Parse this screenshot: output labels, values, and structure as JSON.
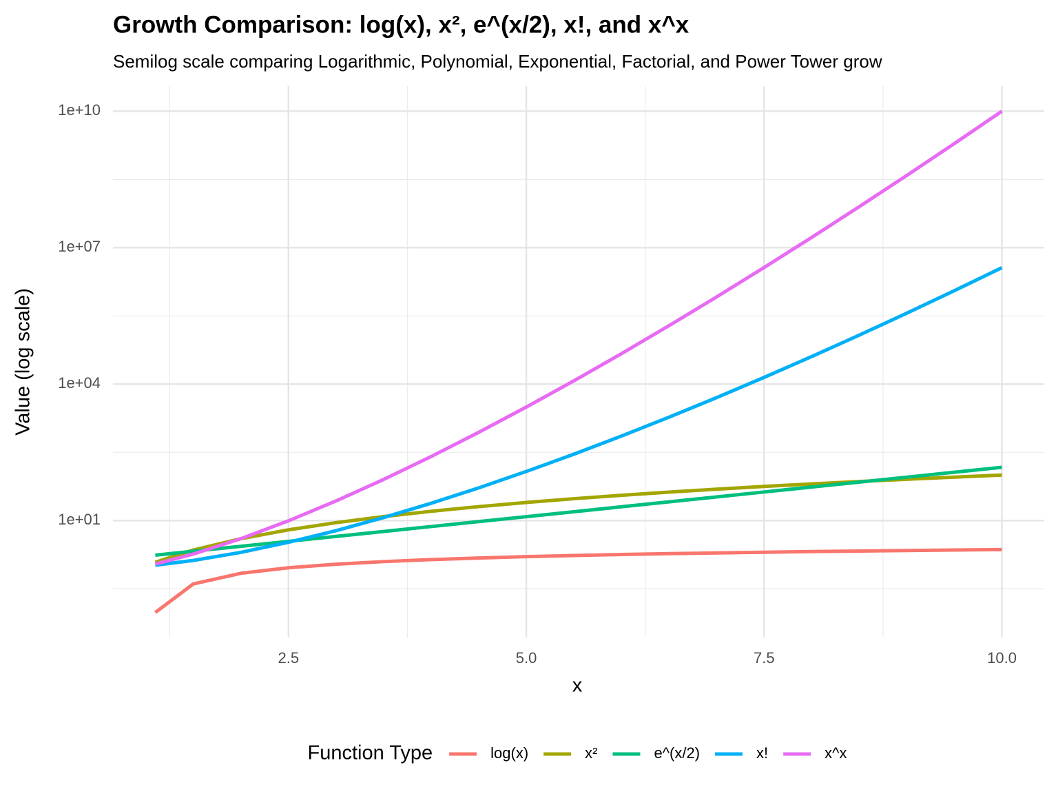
{
  "chart_data": {
    "type": "line",
    "title": "Growth Comparison: log(x), x², e^(x/2), x!, and x^x",
    "subtitle": "Semilog scale comparing Logarithmic, Polynomial, Exponential, Factorial, and Power Tower grow",
    "x_label": "x",
    "y_label": "Value (log scale)",
    "legend_title": "Function Type",
    "legend_position": "bottom",
    "log_y": true,
    "grid": true,
    "xlim": [
      0.655,
      10.445
    ],
    "xticks": [
      {
        "value": 2.5,
        "label": "2.5"
      },
      {
        "value": 5,
        "label": "5.0"
      },
      {
        "value": 7.5,
        "label": "7.5"
      },
      {
        "value": 10,
        "label": "10.0"
      }
    ],
    "ylim": [
      0.0268,
      35560000000
    ],
    "yticks": [
      {
        "value": 10,
        "label": "1e+01"
      },
      {
        "value": 10000,
        "label": "1e+04"
      },
      {
        "value": 10000000,
        "label": "1e+07"
      },
      {
        "value": 10000000000,
        "label": "1e+10"
      }
    ],
    "x": [
      1.1,
      1.5,
      2,
      2.5,
      3,
      3.5,
      4,
      4.5,
      5,
      5.5,
      6,
      6.5,
      7,
      7.5,
      8,
      8.5,
      9,
      9.5,
      10
    ],
    "series": [
      {
        "name": "log(x)",
        "color": "#F8766D",
        "values": [
          0.0953,
          0.4055,
          0.6931,
          0.9163,
          1.0986,
          1.2528,
          1.3863,
          1.5041,
          1.6094,
          1.7047,
          1.7918,
          1.8718,
          1.9459,
          2.0149,
          2.0794,
          2.1401,
          2.1972,
          2.2513,
          2.3026
        ]
      },
      {
        "name": "x²",
        "color": "#A3A500",
        "values": [
          1.21,
          2.25,
          4,
          6.25,
          9,
          12.25,
          16,
          20.25,
          25,
          30.25,
          36,
          42.25,
          49,
          56.25,
          64,
          72.25,
          81,
          90.25,
          100
        ]
      },
      {
        "name": "e^(x/2)",
        "color": "#00BF7D",
        "values": [
          1.7333,
          2.117,
          2.7183,
          3.4903,
          4.4817,
          5.7546,
          7.3891,
          9.4877,
          12.1825,
          15.6426,
          20.0855,
          25.7903,
          33.1155,
          42.5211,
          54.5982,
          70.1054,
          90.0171,
          115.5843,
          148.4132
        ]
      },
      {
        "name": "x!",
        "color": "#00B0F6",
        "values": [
          1.0465,
          1.3293,
          2,
          3.3234,
          6,
          11.6317,
          24,
          52.3428,
          120,
          287.8853,
          720,
          1871.254,
          5040,
          14034.41,
          40320,
          119292.5,
          362880,
          1133278.4,
          3628800
        ]
      },
      {
        "name": "x^x",
        "color": "#E76BF3",
        "values": [
          1.1105,
          1.8371,
          4,
          9.8821,
          27,
          80.21,
          256,
          869.87,
          3125,
          11803,
          46656,
          192620,
          823543,
          3657500,
          16777216,
          79500000,
          387420489,
          1944000000,
          10000000000
        ]
      }
    ]
  }
}
